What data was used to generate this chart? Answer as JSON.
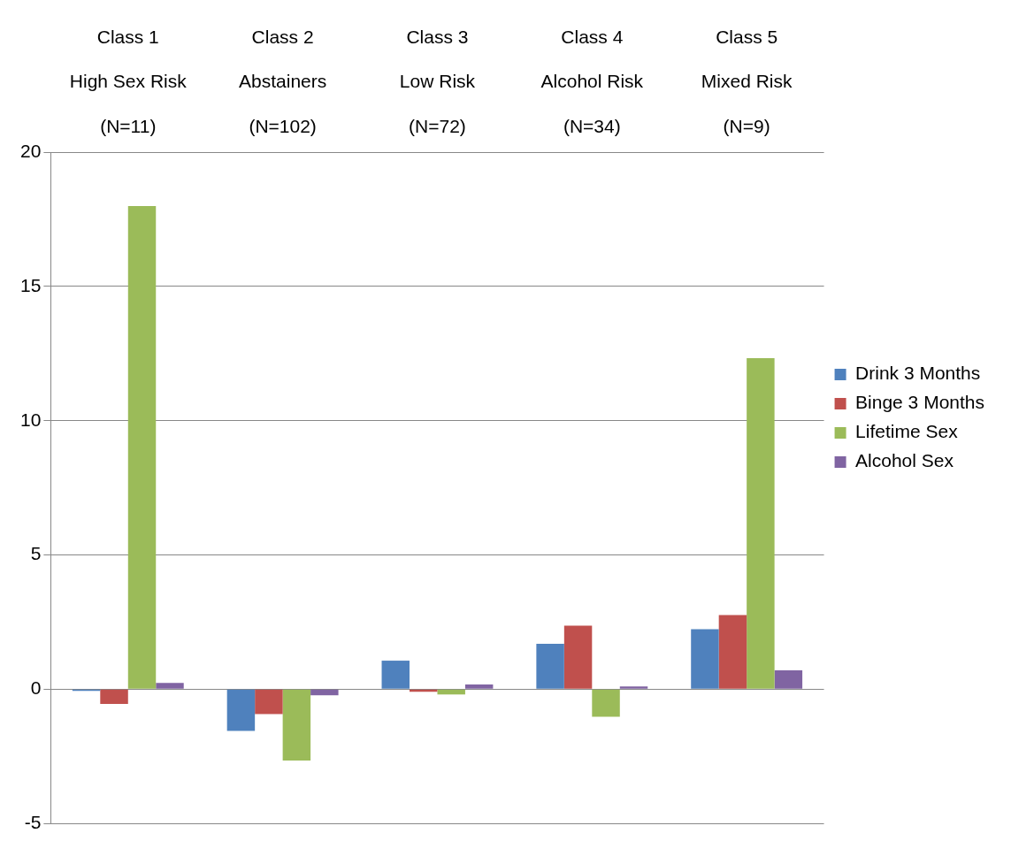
{
  "chart_data": {
    "type": "bar",
    "categories": [
      "Class 1\nHigh Sex Risk\n(N=11)",
      "Class 2\nAbstainers\n(N=102)",
      "Class 3\nLow Risk\n(N=72)",
      "Class 4\nAlcohol Risk\n(N=34)",
      "Class 5\nMixed Risk\n(N=9)"
    ],
    "series": [
      {
        "name": "Drink 3 Months",
        "color": "#4f81bd",
        "values": [
          -0.07,
          -1.56,
          1.06,
          1.69,
          2.23
        ]
      },
      {
        "name": "Binge 3 Months",
        "color": "#c0504d",
        "values": [
          -0.55,
          -0.93,
          -0.1,
          2.36,
          2.76
        ]
      },
      {
        "name": "Lifetime Sex",
        "color": "#9bbb59",
        "values": [
          18.0,
          -2.66,
          -0.2,
          -1.03,
          12.33
        ]
      },
      {
        "name": "Alcohol Sex",
        "color": "#8064a2",
        "values": [
          0.23,
          -0.23,
          0.17,
          0.1,
          0.7
        ]
      }
    ],
    "ylim": [
      -5,
      20
    ],
    "yticks": [
      -5,
      0,
      5,
      10,
      15,
      20
    ],
    "grid": "y",
    "legend": "right"
  }
}
